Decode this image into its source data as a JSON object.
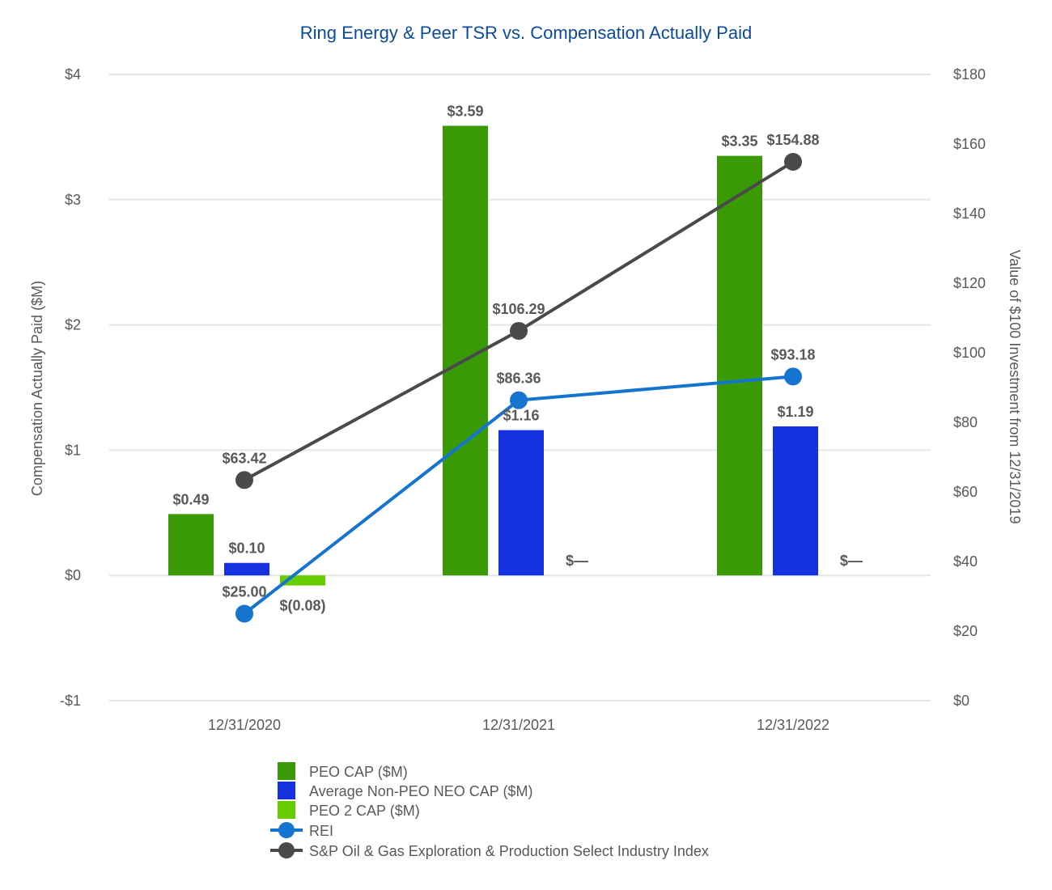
{
  "chart_data": {
    "type": "bar",
    "title": "Ring Energy & Peer TSR vs. Compensation Actually Paid",
    "categories": [
      "12/31/2020",
      "12/31/2021",
      "12/31/2022"
    ],
    "y_left": {
      "label": "Compensation Actually Paid ($M)",
      "range": [
        -1,
        4
      ],
      "ticks": [
        4,
        3,
        2,
        1,
        0,
        -1
      ],
      "tick_labels": [
        "$4",
        "$3",
        "$2",
        "$1",
        "$0",
        "-$1"
      ]
    },
    "y_right": {
      "label": "Value of $100 Investment from 12/31/2019",
      "range": [
        0,
        180
      ],
      "ticks": [
        180,
        160,
        140,
        120,
        100,
        80,
        60,
        40,
        20,
        0
      ],
      "tick_labels": [
        "$180",
        "$160",
        "$140",
        "$120",
        "$100",
        "$80",
        "$60",
        "$40",
        "$20",
        "$0"
      ]
    },
    "bar_series": [
      {
        "name": "PEO CAP ($M)",
        "color": "#3a9a06",
        "values": [
          0.49,
          3.59,
          3.35
        ],
        "labels": [
          "$0.49",
          "$3.59",
          "$3.35"
        ]
      },
      {
        "name": "Average Non-PEO NEO CAP ($M)",
        "color": "#1432e0",
        "values": [
          0.1,
          1.16,
          1.19
        ],
        "labels": [
          "$0.10",
          "$1.16",
          "$1.19"
        ]
      },
      {
        "name": "PEO 2 CAP ($M)",
        "color": "#66cc00",
        "values": [
          -0.08,
          0,
          0
        ],
        "labels": [
          "$(0.08)",
          "$—",
          "$—"
        ]
      }
    ],
    "line_series": [
      {
        "name": "REI",
        "color": "#1474cf",
        "values": [
          25.0,
          86.36,
          93.18
        ],
        "labels": [
          "$25.00",
          "$86.36",
          "$93.18"
        ]
      },
      {
        "name": "S&P Oil & Gas Exploration & Production Select Industry Index",
        "color": "#4a4a4a",
        "values": [
          63.42,
          106.29,
          154.88
        ],
        "labels": [
          "$63.42",
          "$106.29",
          "$154.88"
        ]
      }
    ],
    "legend_position": "bottom-center",
    "grid": true
  }
}
